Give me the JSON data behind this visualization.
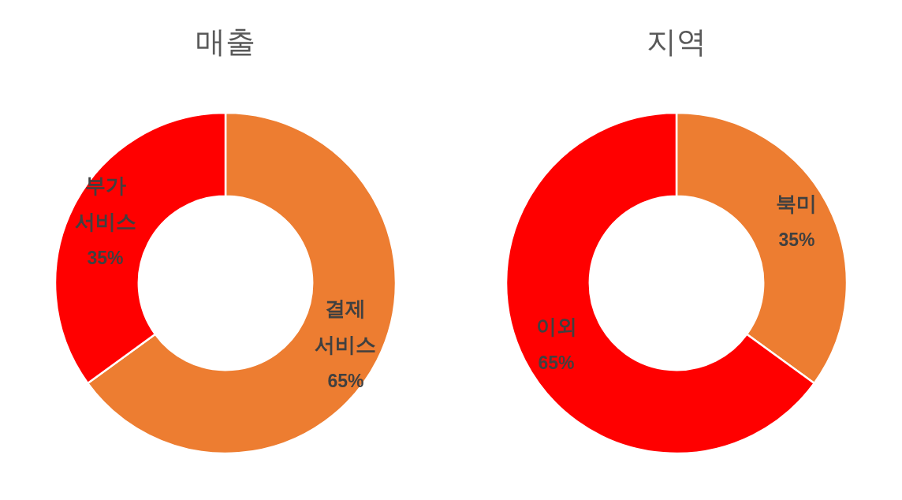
{
  "chart_data": [
    {
      "type": "donut",
      "title": "매출",
      "categories": [
        "결제 서비스",
        "부가 서비스"
      ],
      "values": [
        65,
        35
      ],
      "value_labels": [
        "65%",
        "35%"
      ],
      "colors": [
        "#ed7d31",
        "#ff0000"
      ]
    },
    {
      "type": "donut",
      "title": "지역",
      "categories": [
        "북미",
        "이외"
      ],
      "values": [
        35,
        65
      ],
      "value_labels": [
        "35%",
        "65%"
      ],
      "colors": [
        "#ed7d31",
        "#ff0000"
      ]
    }
  ]
}
